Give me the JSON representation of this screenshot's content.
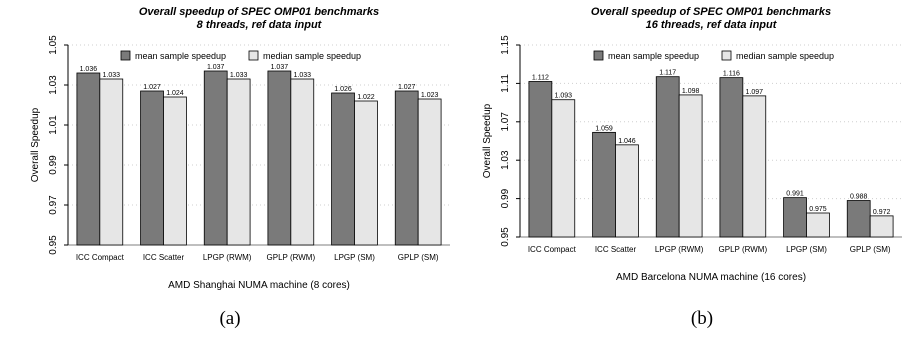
{
  "chart_data": [
    {
      "type": "bar",
      "title": "Overall speedup of SPEC OMP01 benchmarks",
      "subtitle": "8 threads, ref data input",
      "xlabel": "AMD Shanghai NUMA machine (8 cores)",
      "ylabel": "Overall Speedup",
      "ylim": [
        0.95,
        1.05
      ],
      "yticks": [
        "0.95",
        "0.97",
        "0.99",
        "1.01",
        "1.03",
        "1.05"
      ],
      "categories": [
        "ICC Compact",
        "ICC Scatter",
        "LPGP (RWM)",
        "GPLP (RWM)",
        "LPGP (SM)",
        "GPLP (SM)"
      ],
      "series": [
        {
          "name": "mean sample speedup",
          "color": "#7a7a7a",
          "values": [
            1.036,
            1.027,
            1.037,
            1.037,
            1.026,
            1.027
          ],
          "labels": [
            "1.036",
            "1.027",
            "1.037",
            "1.037",
            "1.026",
            "1.027"
          ]
        },
        {
          "name": "median sample speedup",
          "color": "#e6e6e6",
          "values": [
            1.033,
            1.024,
            1.033,
            1.033,
            1.022,
            1.023
          ],
          "labels": [
            "1.033",
            "1.024",
            "1.033",
            "1.033",
            "1.022",
            "1.023"
          ]
        }
      ],
      "legend": "top",
      "grid": true,
      "caption": "(a)"
    },
    {
      "type": "bar",
      "title": "Overall speedup of SPEC OMP01 benchmarks",
      "subtitle": "16 threads, ref data input",
      "xlabel": "AMD Barcelona NUMA machine (16 cores)",
      "ylabel": "Overall Speedup",
      "ylim": [
        0.95,
        1.15
      ],
      "yticks": [
        "0.95",
        "0.99",
        "1.03",
        "1.07",
        "1.11",
        "1.15"
      ],
      "categories": [
        "ICC Compact",
        "ICC Scatter",
        "LPGP (RWM)",
        "GPLP (RWM)",
        "LPGP (SM)",
        "GPLP (SM)"
      ],
      "series": [
        {
          "name": "mean sample speedup",
          "color": "#7a7a7a",
          "values": [
            1.112,
            1.059,
            1.117,
            1.116,
            0.991,
            0.988
          ],
          "labels": [
            "1.112",
            "1.059",
            "1.117",
            "1.116",
            "0.991",
            "0.988"
          ]
        },
        {
          "name": "median sample speedup",
          "color": "#e6e6e6",
          "values": [
            1.093,
            1.046,
            1.098,
            1.097,
            0.975,
            0.972
          ],
          "labels": [
            "1.093",
            "1.046",
            "1.098",
            "1.097",
            "0.975",
            "0.972"
          ]
        }
      ],
      "legend": "top",
      "grid": true,
      "caption": "(b)"
    }
  ]
}
